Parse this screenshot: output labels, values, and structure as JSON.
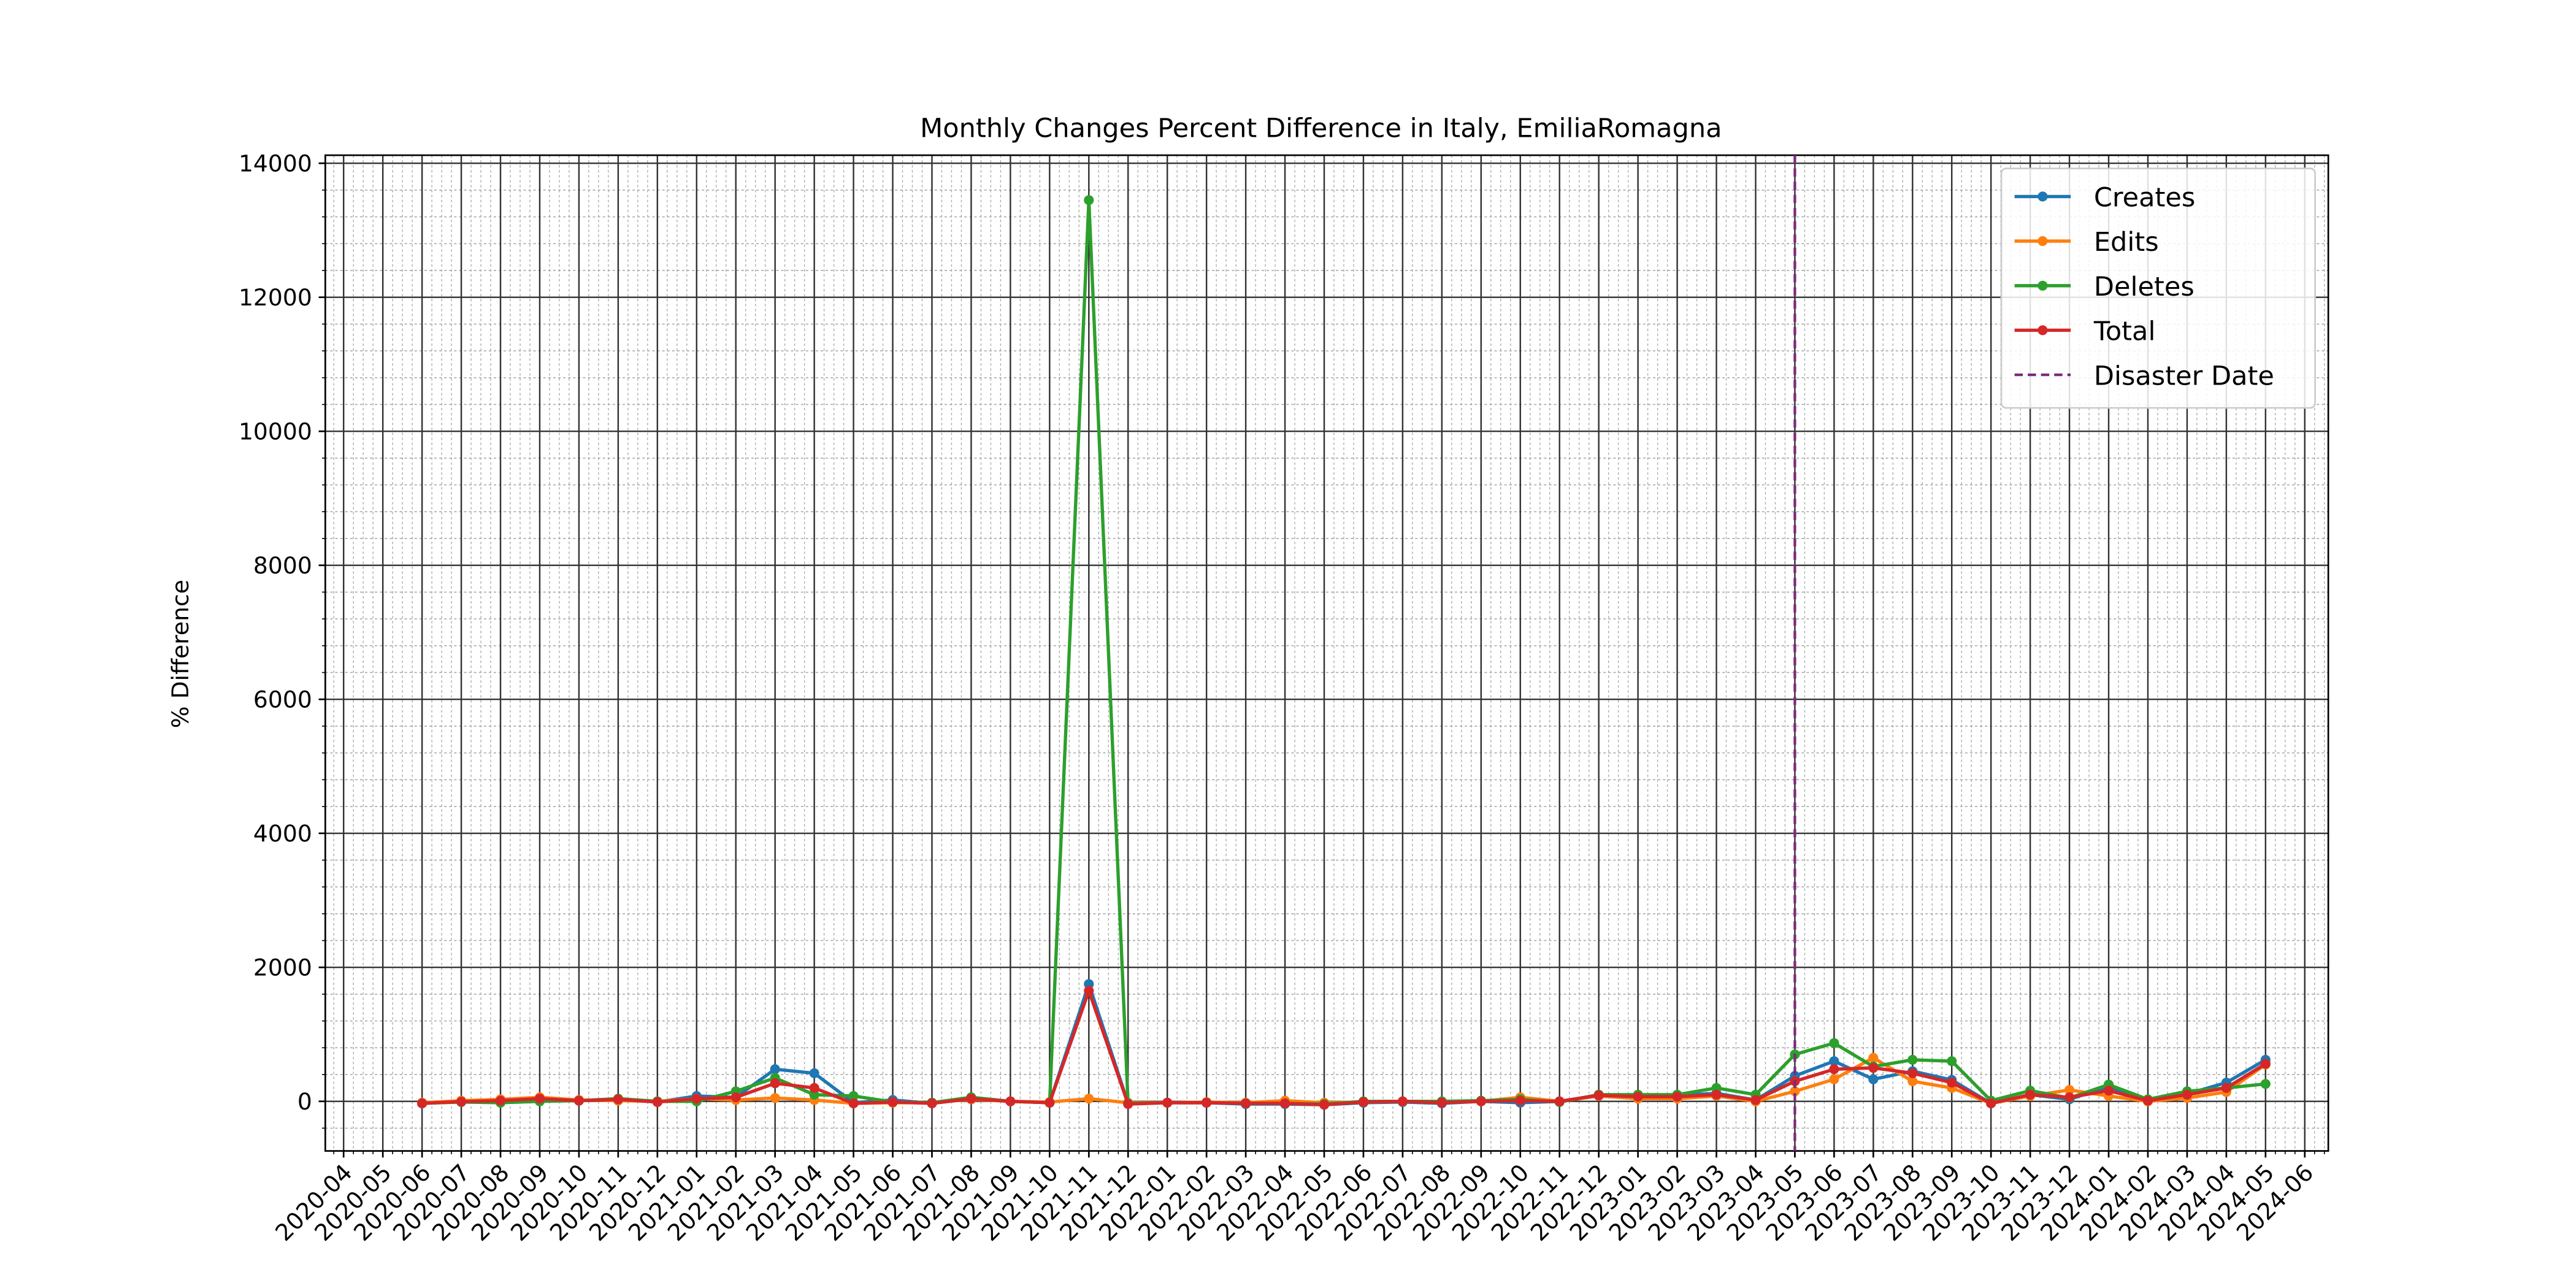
{
  "chart_data": {
    "type": "line",
    "title": "Monthly Changes Percent Difference in Italy, EmiliaRomagna",
    "ylabel": "% Difference",
    "x": [
      "2020-06",
      "2020-07",
      "2020-08",
      "2020-09",
      "2020-10",
      "2020-11",
      "2020-12",
      "2021-01",
      "2021-02",
      "2021-03",
      "2021-04",
      "2021-05",
      "2021-06",
      "2021-07",
      "2021-08",
      "2021-09",
      "2021-10",
      "2021-11",
      "2021-12",
      "2022-01",
      "2022-02",
      "2022-03",
      "2022-04",
      "2022-05",
      "2022-06",
      "2022-07",
      "2022-08",
      "2022-09",
      "2022-10",
      "2022-11",
      "2022-12",
      "2023-01",
      "2023-02",
      "2023-03",
      "2023-04",
      "2023-05",
      "2023-06",
      "2023-07",
      "2023-08",
      "2023-09",
      "2023-10",
      "2023-11",
      "2023-12",
      "2024-01",
      "2024-02",
      "2024-03",
      "2024-04",
      "2024-05"
    ],
    "series": [
      {
        "name": "Creates",
        "color": "#1f77b4",
        "values": [
          -30,
          0,
          10,
          30,
          10,
          30,
          -10,
          80,
          60,
          480,
          420,
          -20,
          20,
          -30,
          40,
          0,
          -20,
          1750,
          -30,
          -20,
          -20,
          -40,
          -40,
          -50,
          -20,
          -10,
          -30,
          0,
          -20,
          0,
          90,
          80,
          90,
          120,
          20,
          380,
          600,
          330,
          450,
          320,
          -30,
          100,
          30,
          220,
          10,
          110,
          280,
          620
        ]
      },
      {
        "name": "Edits",
        "color": "#ff7f0e",
        "values": [
          -20,
          10,
          30,
          60,
          20,
          10,
          0,
          40,
          20,
          50,
          20,
          -30,
          -20,
          -20,
          30,
          0,
          -10,
          40,
          -20,
          -20,
          -10,
          -20,
          10,
          -20,
          -10,
          0,
          -10,
          0,
          60,
          0,
          80,
          40,
          40,
          80,
          0,
          150,
          330,
          650,
          300,
          200,
          -30,
          80,
          170,
          80,
          0,
          50,
          140,
          550
        ]
      },
      {
        "name": "Deletes",
        "color": "#2ca02c",
        "values": [
          -30,
          -10,
          -20,
          0,
          10,
          40,
          0,
          0,
          150,
          350,
          100,
          80,
          -10,
          -20,
          60,
          0,
          -20,
          13450,
          -30,
          -20,
          -20,
          -30,
          -30,
          -40,
          0,
          0,
          0,
          10,
          30,
          -10,
          100,
          100,
          100,
          200,
          100,
          700,
          870,
          520,
          620,
          600,
          10,
          160,
          50,
          250,
          30,
          150,
          200,
          260
        ]
      },
      {
        "name": "Total",
        "color": "#d62728",
        "values": [
          -30,
          -5,
          10,
          40,
          10,
          30,
          -10,
          40,
          60,
          270,
          200,
          -30,
          -10,
          -30,
          40,
          0,
          -20,
          1650,
          -40,
          -20,
          -20,
          -30,
          -30,
          -50,
          -10,
          0,
          -20,
          0,
          10,
          0,
          90,
          70,
          70,
          100,
          20,
          300,
          480,
          500,
          420,
          280,
          -30,
          100,
          60,
          160,
          10,
          100,
          200,
          560
        ]
      }
    ],
    "disaster": {
      "label": "Disaster Date",
      "x": "2023-05",
      "color": "#7b2a7b"
    },
    "xlim": [
      "2020-03-17",
      "2024-06-19"
    ],
    "xticks": [
      "2020-04",
      "2020-05",
      "2020-06",
      "2020-07",
      "2020-08",
      "2020-09",
      "2020-10",
      "2020-11",
      "2020-12",
      "2021-01",
      "2021-02",
      "2021-03",
      "2021-04",
      "2021-05",
      "2021-06",
      "2021-07",
      "2021-08",
      "2021-09",
      "2021-10",
      "2021-11",
      "2021-12",
      "2022-01",
      "2022-02",
      "2022-03",
      "2022-04",
      "2022-05",
      "2022-06",
      "2022-07",
      "2022-08",
      "2022-09",
      "2022-10",
      "2022-11",
      "2022-12",
      "2023-01",
      "2023-02",
      "2023-03",
      "2023-04",
      "2023-05",
      "2023-06",
      "2023-07",
      "2023-08",
      "2023-09",
      "2023-10",
      "2023-11",
      "2023-12",
      "2024-01",
      "2024-02",
      "2024-03",
      "2024-04",
      "2024-05",
      "2024-06"
    ],
    "ylim": [
      -740,
      14120
    ],
    "yticks": [
      0,
      2000,
      4000,
      6000,
      8000,
      10000,
      12000,
      14000
    ],
    "grid": true,
    "minor_grid": true,
    "legend": "upper right"
  }
}
